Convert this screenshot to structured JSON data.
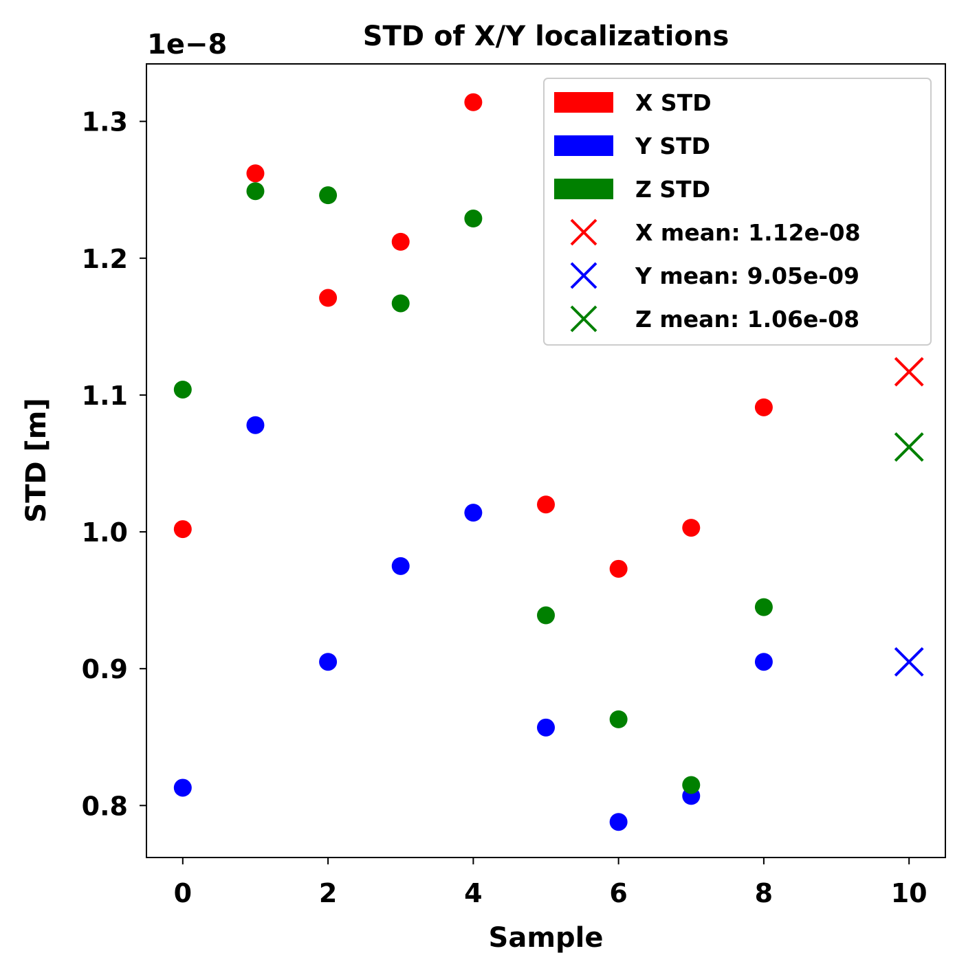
{
  "chart_data": {
    "type": "scatter",
    "title": "STD of X/Y localizations",
    "xlabel": "Sample",
    "ylabel": "STD [m]",
    "y_offset_label": "1e−8",
    "xlim": [
      -0.5,
      10.5
    ],
    "ylim": [
      0.762,
      1.342
    ],
    "y_scale_factor": 1e-08,
    "xticks": [
      0,
      2,
      4,
      6,
      8,
      10
    ],
    "xtick_labels": [
      "0",
      "2",
      "4",
      "6",
      "8",
      "10"
    ],
    "yticks": [
      0.8,
      0.9,
      1.0,
      1.1,
      1.2,
      1.3
    ],
    "ytick_labels": [
      "0.8",
      "0.9",
      "1.0",
      "1.1",
      "1.2",
      "1.3"
    ],
    "grid": false,
    "legend_position": "top-right",
    "series": [
      {
        "name": "X STD",
        "color": "#ff0000",
        "marker": "circle",
        "x": [
          0,
          1,
          2,
          3,
          4,
          5,
          6,
          7,
          8
        ],
        "y": [
          1.002,
          1.262,
          1.171,
          1.212,
          1.314,
          1.02,
          0.973,
          1.003,
          1.091
        ]
      },
      {
        "name": "Y STD",
        "color": "#0000ff",
        "marker": "circle",
        "x": [
          0,
          1,
          2,
          3,
          4,
          5,
          6,
          7,
          8
        ],
        "y": [
          0.813,
          1.078,
          0.905,
          0.975,
          1.014,
          0.857,
          0.788,
          0.807,
          0.905
        ]
      },
      {
        "name": "Z STD",
        "color": "#008000",
        "marker": "circle",
        "x": [
          0,
          1,
          2,
          3,
          4,
          5,
          6,
          7,
          8
        ],
        "y": [
          1.104,
          1.249,
          1.246,
          1.167,
          1.229,
          0.939,
          0.863,
          0.815,
          0.945
        ]
      }
    ],
    "means": [
      {
        "name": "X mean: 1.12e-08",
        "color": "#ff0000",
        "marker": "x",
        "x": 10,
        "y": 1.117
      },
      {
        "name": "Y mean: 9.05e-09",
        "color": "#0000ff",
        "marker": "x",
        "x": 10,
        "y": 0.905
      },
      {
        "name": "Z mean: 1.06e-08",
        "color": "#008000",
        "marker": "x",
        "x": 10,
        "y": 1.062
      }
    ]
  }
}
